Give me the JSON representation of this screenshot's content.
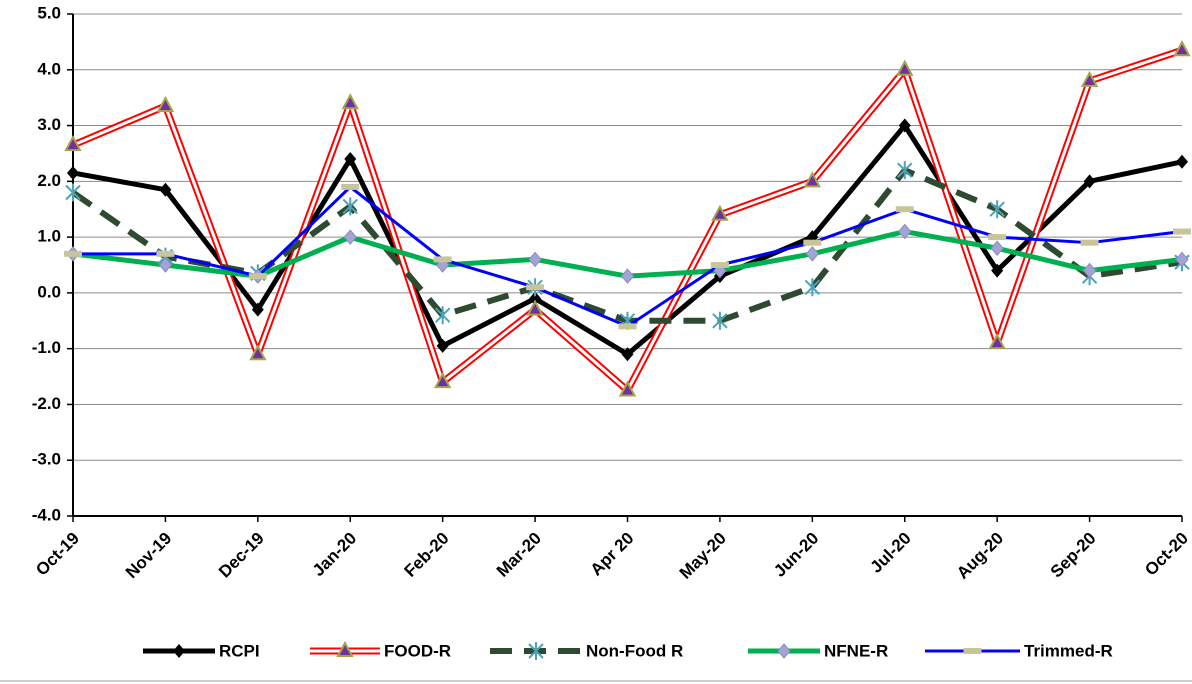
{
  "chart_data": {
    "type": "line",
    "categories": [
      "Oct-19",
      "Nov-19",
      "Dec-19",
      "Jan-20",
      "Feb-20",
      "Mar-20",
      "Apr 20",
      "May-20",
      "Jun-20",
      "Jul-20",
      "Aug-20",
      "Sep-20",
      "Oct-20"
    ],
    "series": [
      {
        "name": "RCPI",
        "color": "#000000",
        "marker": "diamond",
        "values": [
          2.15,
          1.85,
          -0.3,
          2.4,
          -0.95,
          -0.1,
          -1.1,
          0.3,
          1.0,
          3.0,
          0.4,
          2.0,
          2.35
        ]
      },
      {
        "name": "FOOD-R",
        "color": "#ff0000",
        "marker": "triangle",
        "double": true,
        "values": [
          2.65,
          3.35,
          -1.1,
          3.4,
          -1.6,
          -0.3,
          -1.75,
          1.4,
          2.0,
          4.0,
          -0.9,
          3.8,
          4.35
        ]
      },
      {
        "name": "Non-Food R",
        "color": "#2e4a30",
        "marker": "star",
        "dashed": true,
        "values": [
          1.8,
          0.65,
          0.35,
          1.55,
          -0.4,
          0.1,
          -0.5,
          -0.5,
          0.1,
          2.2,
          1.5,
          0.3,
          0.55
        ]
      },
      {
        "name": "NFNE-R",
        "color": "#00b050",
        "marker": "diamond-light",
        "values": [
          0.7,
          0.5,
          0.3,
          1.0,
          0.5,
          0.6,
          0.3,
          0.4,
          0.7,
          1.1,
          0.8,
          0.4,
          0.6
        ]
      },
      {
        "name": "Trimmed-R",
        "color": "#0000ff",
        "marker": "dash",
        "values": [
          0.7,
          0.7,
          0.3,
          1.9,
          0.6,
          0.1,
          -0.6,
          0.5,
          0.9,
          1.5,
          1.0,
          0.9,
          1.1
        ]
      }
    ],
    "ylim": [
      -4,
      5
    ],
    "yticks": [
      {
        "value": -4,
        "label": "-4.0"
      },
      {
        "value": -3,
        "label": "-3.0"
      },
      {
        "value": -2,
        "label": "-2.0"
      },
      {
        "value": -1,
        "label": "-1.0"
      },
      {
        "value": 0,
        "label": "0.0"
      },
      {
        "value": 1,
        "label": "1.0"
      },
      {
        "value": 2,
        "label": "2.0"
      },
      {
        "value": 3,
        "label": "3.0"
      },
      {
        "value": 4,
        "label": "4.0"
      },
      {
        "value": 5,
        "label": "5.0"
      }
    ],
    "grid": true,
    "legend": "bottom"
  }
}
